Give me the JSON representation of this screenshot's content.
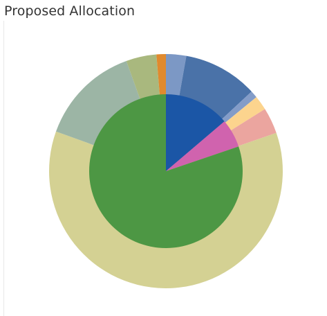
{
  "header": {
    "title": "Proposed Allocation"
  },
  "chart_data": {
    "type": "pie",
    "title": "Proposed Allocation",
    "subtype": "nested donut",
    "colors": {
      "inner_blue": "#1b56a6",
      "inner_magenta": "#d063ae",
      "inner_green": "#4d9744"
    },
    "rings": [
      {
        "name": "",
        "ring": "inner",
        "slices": [
          {
            "value": 13.8,
            "color": "#1b56a6"
          },
          {
            "value": 6.0,
            "color": "#d063ae"
          },
          {
            "value": 80.2,
            "color": "#4d9744"
          }
        ]
      },
      {
        "name": "",
        "ring": "outer",
        "slices": [
          {
            "value": 2.8,
            "color": "#7c98c5"
          },
          {
            "value": 10.3,
            "color": "#4a72a8"
          },
          {
            "value": 1.0,
            "color": "#839cc8"
          },
          {
            "value": 2.0,
            "color": "#fcd48e"
          },
          {
            "value": 3.6,
            "color": "#eba59f"
          },
          {
            "value": 60.8,
            "color": "#d4d193"
          },
          {
            "value": 14.0,
            "color": "#9cb5a5"
          },
          {
            "value": 4.2,
            "color": "#a9b87e"
          },
          {
            "value": 1.3,
            "color": "#e08a2e"
          }
        ]
      }
    ]
  }
}
